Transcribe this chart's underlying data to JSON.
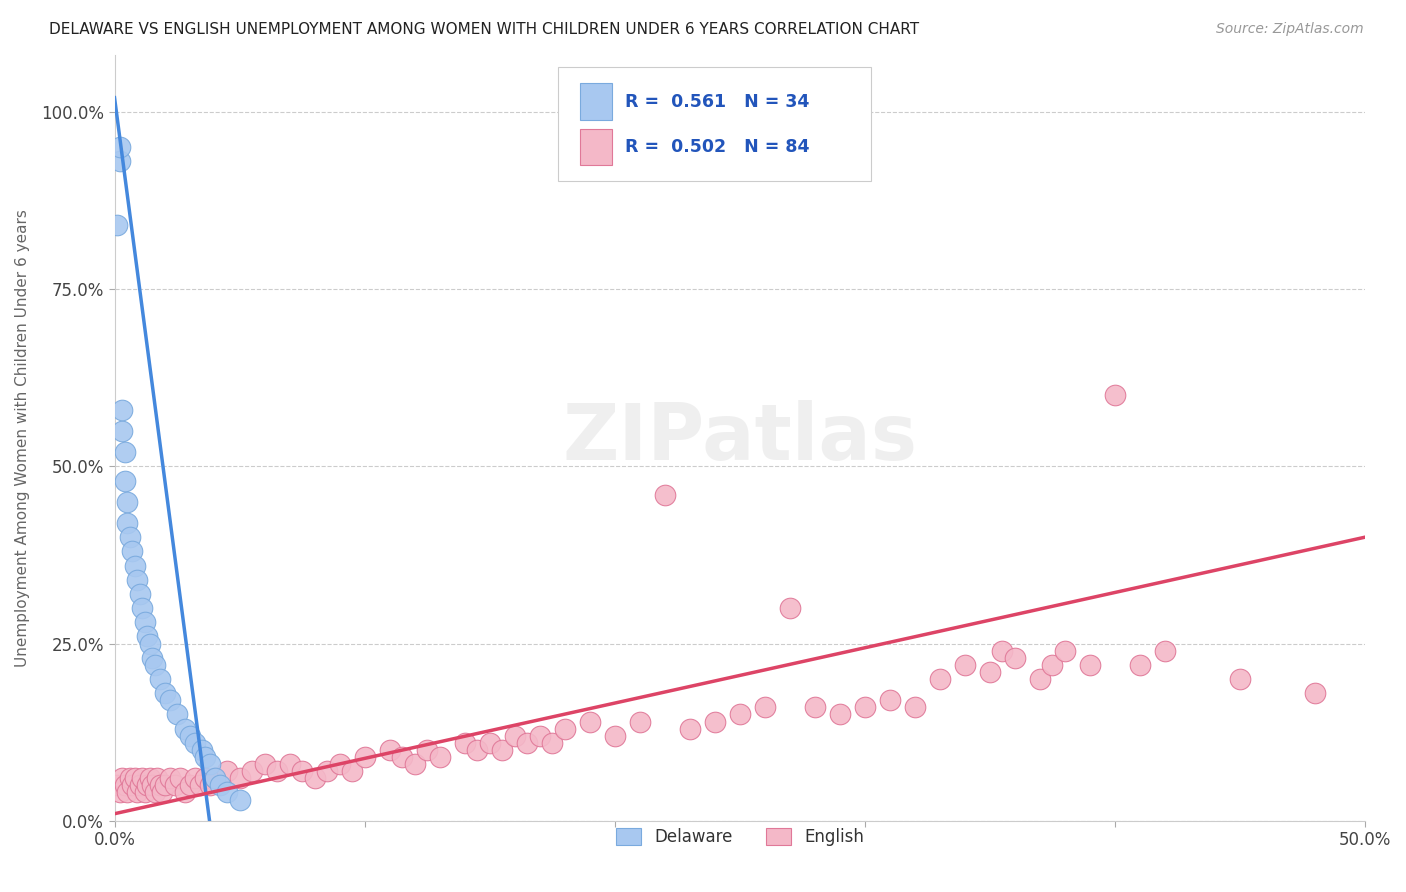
{
  "title": "DELAWARE VS ENGLISH UNEMPLOYMENT AMONG WOMEN WITH CHILDREN UNDER 6 YEARS CORRELATION CHART",
  "source": "Source: ZipAtlas.com",
  "ylabel_label": "Unemployment Among Women with Children Under 6 years",
  "x_min": 0.0,
  "x_max": 0.5,
  "y_min": 0.0,
  "y_max": 1.08,
  "delaware_color": "#a8c8f0",
  "delaware_edge": "#7aaade",
  "english_color": "#f4b8c8",
  "english_edge": "#e07898",
  "line_blue": "#4488dd",
  "line_pink": "#dd4466",
  "watermark_text": "ZIPatlas",
  "legend_text_1": "R =  0.561   N = 34",
  "legend_text_2": "R =  0.502   N = 84",
  "legend_color": "#2255bb",
  "del_line_x0": 0.0,
  "del_line_y0": 1.02,
  "del_line_x1": 0.038,
  "del_line_y1": 0.0,
  "eng_line_x0": 0.0,
  "eng_line_y0": 0.01,
  "eng_line_x1": 0.5,
  "eng_line_y1": 0.4,
  "delaware_x": [
    0.001,
    0.002,
    0.002,
    0.003,
    0.003,
    0.004,
    0.004,
    0.005,
    0.005,
    0.006,
    0.007,
    0.008,
    0.009,
    0.01,
    0.011,
    0.012,
    0.013,
    0.014,
    0.015,
    0.016,
    0.018,
    0.02,
    0.022,
    0.025,
    0.028,
    0.03,
    0.032,
    0.035,
    0.036,
    0.038,
    0.04,
    0.042,
    0.045,
    0.05
  ],
  "delaware_y": [
    0.84,
    0.93,
    0.95,
    0.55,
    0.58,
    0.48,
    0.52,
    0.45,
    0.42,
    0.4,
    0.38,
    0.36,
    0.34,
    0.32,
    0.3,
    0.28,
    0.26,
    0.25,
    0.23,
    0.22,
    0.2,
    0.18,
    0.17,
    0.15,
    0.13,
    0.12,
    0.11,
    0.1,
    0.09,
    0.08,
    0.06,
    0.05,
    0.04,
    0.03
  ],
  "english_x": [
    0.001,
    0.002,
    0.003,
    0.004,
    0.005,
    0.006,
    0.007,
    0.008,
    0.009,
    0.01,
    0.011,
    0.012,
    0.013,
    0.014,
    0.015,
    0.016,
    0.017,
    0.018,
    0.019,
    0.02,
    0.022,
    0.024,
    0.026,
    0.028,
    0.03,
    0.032,
    0.034,
    0.036,
    0.038,
    0.04,
    0.045,
    0.05,
    0.055,
    0.06,
    0.065,
    0.07,
    0.075,
    0.08,
    0.085,
    0.09,
    0.095,
    0.1,
    0.11,
    0.115,
    0.12,
    0.125,
    0.13,
    0.14,
    0.145,
    0.15,
    0.155,
    0.16,
    0.165,
    0.17,
    0.175,
    0.18,
    0.19,
    0.2,
    0.21,
    0.22,
    0.23,
    0.24,
    0.25,
    0.26,
    0.27,
    0.28,
    0.29,
    0.3,
    0.31,
    0.32,
    0.33,
    0.34,
    0.35,
    0.355,
    0.36,
    0.37,
    0.375,
    0.38,
    0.39,
    0.4,
    0.41,
    0.42,
    0.45,
    0.48
  ],
  "english_y": [
    0.05,
    0.04,
    0.06,
    0.05,
    0.04,
    0.06,
    0.05,
    0.06,
    0.04,
    0.05,
    0.06,
    0.04,
    0.05,
    0.06,
    0.05,
    0.04,
    0.06,
    0.05,
    0.04,
    0.05,
    0.06,
    0.05,
    0.06,
    0.04,
    0.05,
    0.06,
    0.05,
    0.06,
    0.05,
    0.06,
    0.07,
    0.06,
    0.07,
    0.08,
    0.07,
    0.08,
    0.07,
    0.06,
    0.07,
    0.08,
    0.07,
    0.09,
    0.1,
    0.09,
    0.08,
    0.1,
    0.09,
    0.11,
    0.1,
    0.11,
    0.1,
    0.12,
    0.11,
    0.12,
    0.11,
    0.13,
    0.14,
    0.12,
    0.14,
    0.46,
    0.13,
    0.14,
    0.15,
    0.16,
    0.3,
    0.16,
    0.15,
    0.16,
    0.17,
    0.16,
    0.2,
    0.22,
    0.21,
    0.24,
    0.23,
    0.2,
    0.22,
    0.24,
    0.22,
    0.6,
    0.22,
    0.24,
    0.2,
    0.18
  ]
}
